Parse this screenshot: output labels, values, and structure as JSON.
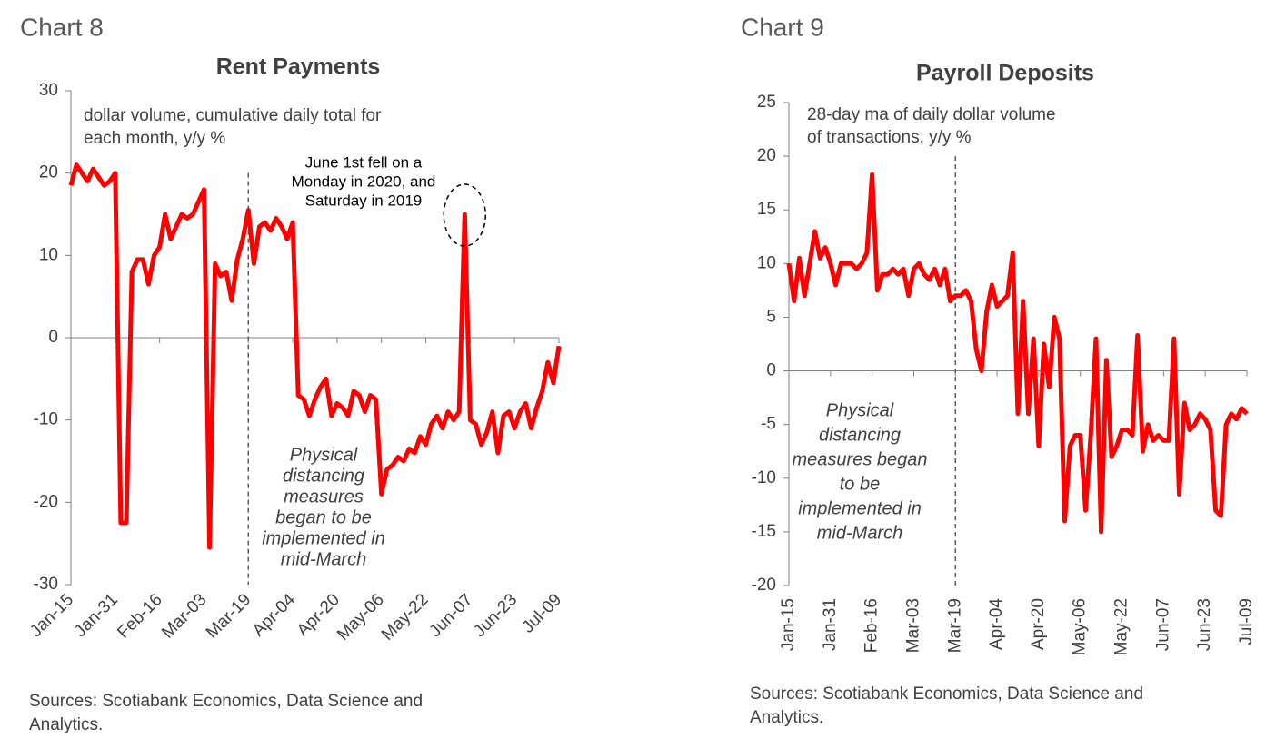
{
  "chart_data": [
    {
      "type": "line",
      "label": "Chart 8",
      "title": "Rent Payments",
      "subtitle": [
        "dollar volume, cumulative daily total for",
        "each month, y/y %"
      ],
      "annotations": [
        [
          "Physical",
          "distancing",
          "measures",
          "began to be",
          "implemented in",
          "mid-March"
        ],
        [
          "June 1st fell on a",
          "Monday in 2020, and",
          "Saturday in 2019"
        ]
      ],
      "source": [
        "Sources: Scotiabank Economics, Data Science and",
        "Analytics."
      ],
      "categories": [
        "Jan-15",
        null,
        null,
        null,
        null,
        null,
        null,
        null,
        "Jan-31",
        null,
        null,
        null,
        null,
        null,
        null,
        null,
        "Feb-16",
        null,
        null,
        null,
        null,
        null,
        null,
        null,
        "Mar-03",
        null,
        null,
        null,
        null,
        null,
        null,
        null,
        "Mar-19",
        null,
        null,
        null,
        null,
        null,
        null,
        null,
        "Apr-04",
        null,
        null,
        null,
        null,
        null,
        null,
        null,
        "Apr-20",
        null,
        null,
        null,
        null,
        null,
        null,
        null,
        "May-06",
        null,
        null,
        null,
        null,
        null,
        null,
        null,
        "May-22",
        null,
        null,
        null,
        null,
        null,
        null,
        null,
        "Jun-07",
        null,
        null,
        null,
        null,
        null,
        null,
        null,
        "Jun-23",
        null,
        null,
        null,
        null,
        null,
        null,
        null,
        "Jul-09"
      ],
      "values": [
        18.5,
        21,
        20,
        19,
        20.5,
        19.5,
        18.5,
        19,
        20,
        -22.5,
        -22.5,
        8,
        9.5,
        9.5,
        6.5,
        10,
        11,
        15,
        12,
        13.5,
        15,
        14.5,
        15,
        16.5,
        18,
        -25.5,
        9,
        7.5,
        8,
        4.5,
        9.5,
        12,
        15.5,
        9,
        13.5,
        14,
        13,
        14.5,
        13.5,
        12,
        14,
        -7,
        -7.5,
        -9.5,
        -7.5,
        -6,
        -5,
        -9.5,
        -8,
        -8.5,
        -9.5,
        -6.5,
        -7,
        -9,
        -7,
        -7.5,
        -19,
        -16,
        -15.5,
        -14.5,
        -15,
        -13.5,
        -14,
        -12,
        -13,
        -10.5,
        -9.5,
        -11,
        -9,
        -10,
        -9,
        15,
        -10,
        -10.5,
        -13,
        -11.5,
        -9,
        -14,
        -9.5,
        -9,
        -11,
        -9,
        -8,
        -11,
        -8.5,
        -6.5,
        -3,
        -5.5,
        -1
      ],
      "color": "#ff0000",
      "ylim": [
        -30,
        30
      ],
      "yticks": [
        -30,
        -20,
        -10,
        0,
        10,
        20,
        30
      ]
    },
    {
      "type": "line",
      "label": "Chart 9",
      "title": "Payroll Deposits",
      "subtitle": [
        "28-day ma of daily dollar volume",
        "of transactions, y/y %"
      ],
      "annotations": [
        [
          "Physical",
          "distancing",
          "measures began",
          "to be",
          "implemented in",
          "mid-March"
        ]
      ],
      "source": [
        "Sources: Scotiabank Economics, Data Science and",
        "Analytics."
      ],
      "categories": [
        "Jan-15",
        null,
        null,
        null,
        null,
        null,
        null,
        null,
        "Jan-31",
        null,
        null,
        null,
        null,
        null,
        null,
        null,
        "Feb-16",
        null,
        null,
        null,
        null,
        null,
        null,
        null,
        "Mar-03",
        null,
        null,
        null,
        null,
        null,
        null,
        null,
        "Mar-19",
        null,
        null,
        null,
        null,
        null,
        null,
        null,
        "Apr-04",
        null,
        null,
        null,
        null,
        null,
        null,
        null,
        "Apr-20",
        null,
        null,
        null,
        null,
        null,
        null,
        null,
        "May-06",
        null,
        null,
        null,
        null,
        null,
        null,
        null,
        "May-22",
        null,
        null,
        null,
        null,
        null,
        null,
        null,
        "Jun-07",
        null,
        null,
        null,
        null,
        null,
        null,
        null,
        "Jun-23",
        null,
        null,
        null,
        null,
        null,
        null,
        null,
        "Jul-09"
      ],
      "values": [
        10,
        6.5,
        10.5,
        7,
        10,
        13,
        10.5,
        11.5,
        10,
        8,
        10,
        10,
        10,
        9.5,
        10,
        11,
        18.3,
        7.5,
        9,
        9,
        9.5,
        9,
        9.5,
        7,
        9.5,
        10,
        9,
        8.5,
        9.5,
        8,
        9.5,
        6.5,
        7,
        7,
        7.5,
        6.5,
        2,
        0,
        5.5,
        8,
        6,
        6.5,
        7,
        11,
        -4,
        6.5,
        -4,
        3,
        -7,
        2.5,
        -1.5,
        5,
        3,
        -14,
        -7,
        -6,
        -6,
        -13,
        -6,
        3,
        -15,
        1,
        -8,
        -7,
        -5.5,
        -5.5,
        -6,
        3.3,
        -7.5,
        -5,
        -6.5,
        -6,
        -6.5,
        -6.5,
        3,
        -11.5,
        -3,
        -5.5,
        -5,
        -4,
        -4.5,
        -5.5,
        -13,
        -13.5,
        -5,
        -4,
        -4.5,
        -3.5,
        -4
      ],
      "color": "#ff0000",
      "ylim": [
        -20,
        25
      ],
      "yticks": [
        -20,
        -15,
        -10,
        -5,
        0,
        5,
        10,
        15,
        20,
        25
      ]
    }
  ]
}
